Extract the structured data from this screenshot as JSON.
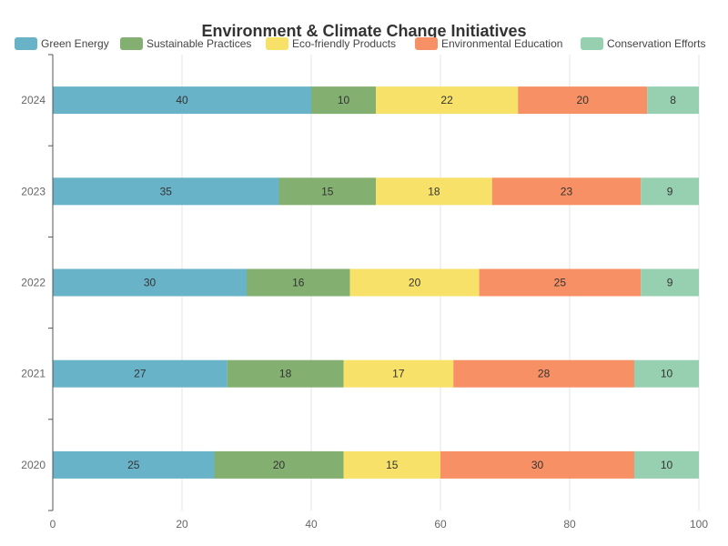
{
  "chart_data": {
    "type": "bar",
    "orientation": "horizontal",
    "stacked": true,
    "title": "Environment & Climate Change Initiatives",
    "categories": [
      "2020",
      "2021",
      "2022",
      "2023",
      "2024"
    ],
    "series": [
      {
        "name": "Green Energy",
        "color": "#69b3c9",
        "values": [
          25,
          27,
          30,
          35,
          40
        ]
      },
      {
        "name": "Sustainable Practices",
        "color": "#83af70",
        "values": [
          20,
          18,
          16,
          15,
          10
        ]
      },
      {
        "name": "Eco-friendly Products",
        "color": "#f7e168",
        "values": [
          15,
          17,
          20,
          18,
          22
        ]
      },
      {
        "name": "Environmental Education",
        "color": "#f79064",
        "values": [
          30,
          28,
          25,
          23,
          20
        ]
      },
      {
        "name": "Conservation Efforts",
        "color": "#97d0b1",
        "values": [
          10,
          10,
          9,
          9,
          8
        ]
      }
    ],
    "xlim": [
      0,
      100
    ],
    "xticks": [
      0,
      20,
      40,
      60,
      80,
      100
    ],
    "grid": true,
    "legend_position": "top"
  }
}
